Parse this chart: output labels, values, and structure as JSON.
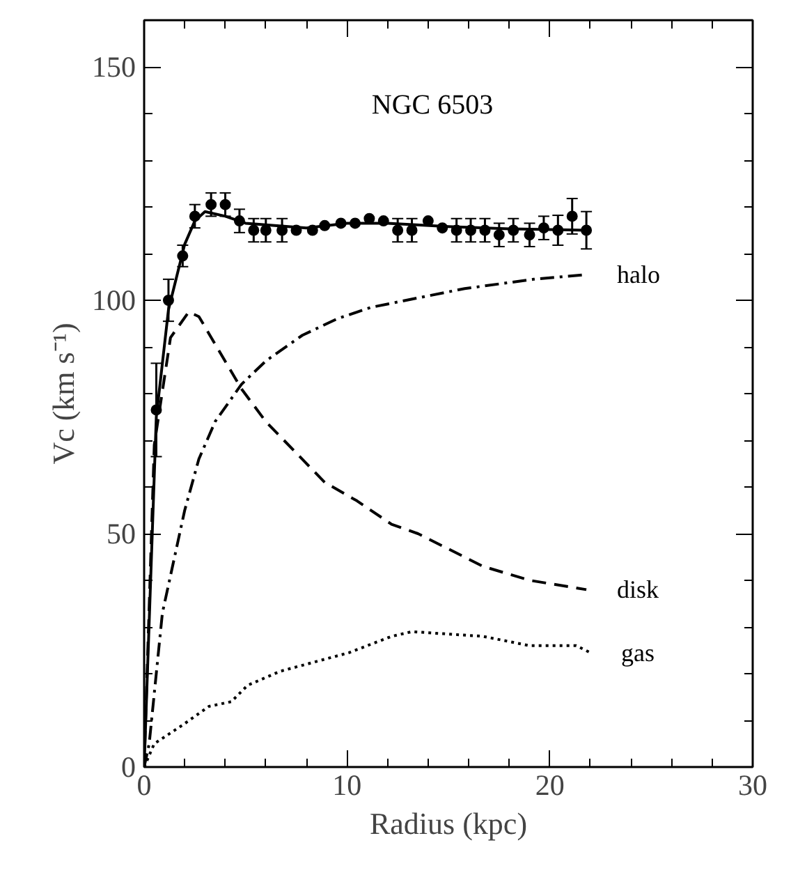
{
  "chart_data": {
    "type": "line",
    "title": "NGC 6503",
    "xlabel": "Radius (kpc)",
    "ylabel": "Vc (km s⁻¹)",
    "xlim": [
      0,
      30
    ],
    "ylim": [
      0,
      160
    ],
    "xticks": [
      0,
      {
        "value": 2,
        "label": null
      },
      {
        "value": 4,
        "label": null
      },
      {
        "value": 6,
        "label": null
      },
      {
        "value": 8,
        "label": null
      },
      10,
      {
        "value": 12,
        "label": null
      },
      {
        "value": 14,
        "label": null
      },
      {
        "value": 16,
        "label": null
      },
      {
        "value": 18,
        "label": null
      },
      20,
      {
        "value": 22,
        "label": null
      },
      {
        "value": 24,
        "label": null
      },
      {
        "value": 26,
        "label": null
      },
      {
        "value": 28,
        "label": null
      },
      30
    ],
    "yticks": [
      0,
      {
        "value": 10,
        "label": null
      },
      {
        "value": 20,
        "label": null
      },
      {
        "value": 30,
        "label": null
      },
      {
        "value": 40,
        "label": null
      },
      50,
      {
        "value": 60,
        "label": null
      },
      {
        "value": 70,
        "label": null
      },
      {
        "value": 80,
        "label": null
      },
      {
        "value": 90,
        "label": null
      },
      100,
      {
        "value": 110,
        "label": null
      },
      {
        "value": 120,
        "label": null
      },
      {
        "value": 130,
        "label": null
      },
      {
        "value": 140,
        "label": null
      },
      150
    ],
    "grid": false,
    "legend": false,
    "series": [
      {
        "type": "scatter",
        "marker": "circle",
        "color": "#000000",
        "x": [
          0.6,
          1.2,
          1.9,
          2.5,
          3.3,
          4.0,
          4.7,
          5.4,
          6.0,
          6.8,
          7.5,
          8.3,
          8.9,
          9.7,
          10.4,
          11.1,
          11.8,
          12.5,
          13.2,
          14.0,
          14.7,
          15.4,
          16.1,
          16.8,
          17.5,
          18.2,
          19.0,
          19.7,
          20.4,
          21.1,
          21.8
        ],
        "values": [
          76.5,
          100,
          109.5,
          118,
          120.5,
          120.5,
          117,
          115,
          115,
          115,
          115,
          115,
          116,
          116.5,
          116.5,
          117.5,
          117,
          115,
          115,
          117,
          115.5,
          115,
          115,
          115,
          114,
          115,
          114,
          115.5,
          115,
          118,
          115
        ],
        "errors": [
          10,
          4.5,
          2.3,
          2.5,
          2.5,
          2.5,
          2.5,
          2.5,
          2.5,
          2.5,
          null,
          null,
          null,
          null,
          null,
          null,
          null,
          2.5,
          2.5,
          null,
          null,
          2.5,
          2.5,
          2.5,
          2.5,
          2.5,
          2.5,
          2.5,
          3.2,
          3.8,
          4
        ]
      },
      {
        "line_style": "solid",
        "color": "#000000",
        "x": [
          0,
          0.6,
          1.2,
          2.0,
          2.5,
          3.0,
          4.0,
          5.0,
          8.0,
          10.0,
          12.0,
          15.0,
          18.0,
          21.8
        ],
        "values": [
          0,
          75,
          98,
          112,
          117,
          119,
          118,
          116.5,
          115.5,
          116.5,
          116.5,
          115.8,
          115.3,
          115
        ]
      },
      {
        "name": "halo",
        "line_style": "dashdot",
        "color": "#000000",
        "x": [
          0,
          0.25,
          0.9,
          1.5,
          2.0,
          2.7,
          3.5,
          4.8,
          6.0,
          7.8,
          9.5,
          11.2,
          13.5,
          15.8,
          19.2,
          21.8
        ],
        "values": [
          0,
          5,
          33,
          45,
          55,
          66,
          74,
          82,
          87,
          92.5,
          96,
          98.5,
          100.5,
          102.5,
          104.5,
          105.5
        ]
      },
      {
        "name": "disk",
        "line_style": "dashed",
        "color": "#000000",
        "x": [
          0,
          0.5,
          1.3,
          2.2,
          2.7,
          4.8,
          6.0,
          8.9,
          10.5,
          12.2,
          13.5,
          16.7,
          19.0,
          21.8
        ],
        "values": [
          0,
          69,
          92,
          97.5,
          96.5,
          81,
          74,
          61,
          57,
          52,
          50,
          43,
          40,
          38
        ]
      },
      {
        "name": "gas",
        "line_style": "dotted",
        "color": "#000000",
        "x": [
          0,
          0.5,
          1.9,
          3.2,
          4.3,
          5.1,
          6.7,
          10.1,
          12.2,
          13.2,
          16.7,
          19.0,
          21.3,
          22.0
        ],
        "values": [
          0,
          5,
          9,
          13,
          14,
          17.5,
          20.5,
          24.5,
          28,
          29,
          28,
          26,
          26,
          24.5
        ]
      }
    ]
  }
}
